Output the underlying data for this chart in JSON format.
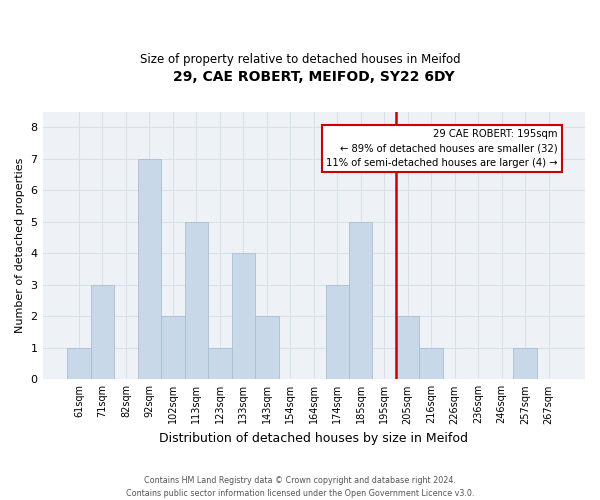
{
  "title": "29, CAE ROBERT, MEIFOD, SY22 6DY",
  "subtitle": "Size of property relative to detached houses in Meifod",
  "xlabel": "Distribution of detached houses by size in Meifod",
  "ylabel": "Number of detached properties",
  "bin_labels": [
    "61sqm",
    "71sqm",
    "82sqm",
    "92sqm",
    "102sqm",
    "113sqm",
    "123sqm",
    "133sqm",
    "143sqm",
    "154sqm",
    "164sqm",
    "174sqm",
    "185sqm",
    "195sqm",
    "205sqm",
    "216sqm",
    "226sqm",
    "236sqm",
    "246sqm",
    "257sqm",
    "267sqm"
  ],
  "bar_heights": [
    1,
    3,
    0,
    7,
    2,
    5,
    1,
    4,
    2,
    0,
    0,
    3,
    5,
    0,
    2,
    1,
    0,
    0,
    0,
    1,
    0
  ],
  "bar_color": "#c8d8e8",
  "bar_edge_color": "#a8bfcf",
  "subject_line_index": 13,
  "subject_line_color": "#cc0000",
  "annotation_line1": "29 CAE ROBERT: 195sqm",
  "annotation_line2": "← 89% of detached houses are smaller (32)",
  "annotation_line3": "11% of semi-detached houses are larger (4) →",
  "annotation_box_edge_color": "#cc0000",
  "ylim": [
    0,
    8.5
  ],
  "yticks": [
    0,
    1,
    2,
    3,
    4,
    5,
    6,
    7,
    8
  ],
  "grid_color": "#d8e0e8",
  "footer_line1": "Contains HM Land Registry data © Crown copyright and database right 2024.",
  "footer_line2": "Contains public sector information licensed under the Open Government Licence v3.0.",
  "background_color": "#ffffff",
  "plot_bg_color": "#eef2f6"
}
